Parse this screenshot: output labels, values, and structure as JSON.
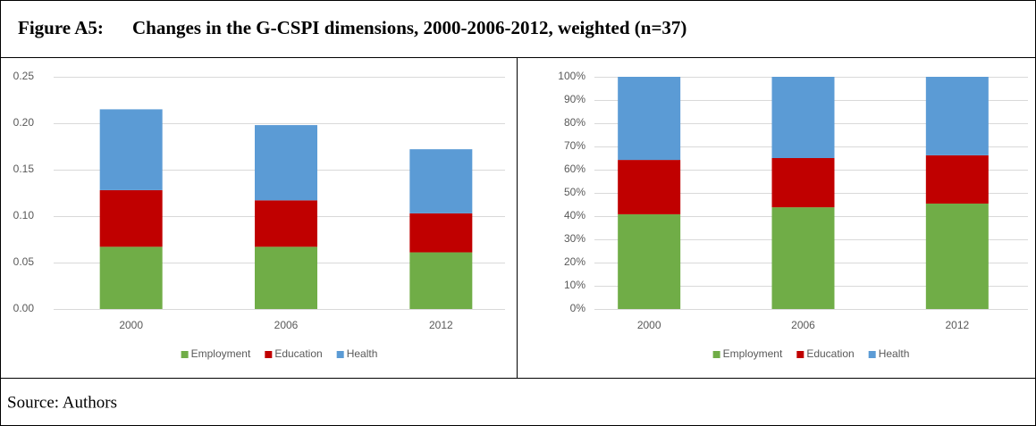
{
  "figure": {
    "label": "Figure A5:",
    "title": "Changes in the G-CSPI dimensions, 2000-2006-2012, weighted (n=37)"
  },
  "source": "Source: Authors",
  "chart_data": [
    {
      "type": "stacked_bar",
      "categories": [
        "2000",
        "2006",
        "2012"
      ],
      "series": [
        {
          "name": "Employment",
          "color": "#70ad47",
          "values": [
            0.067,
            0.067,
            0.061
          ]
        },
        {
          "name": "Education",
          "color": "#c00000",
          "values": [
            0.061,
            0.05,
            0.042
          ]
        },
        {
          "name": "Health",
          "color": "#5b9bd5",
          "values": [
            0.087,
            0.081,
            0.069
          ]
        }
      ],
      "ylim": [
        0,
        0.25
      ],
      "yticks": [
        {
          "value": 0,
          "label": "0.00"
        },
        {
          "value": 0.05,
          "label": "0.05"
        },
        {
          "value": 0.1,
          "label": "0.10"
        },
        {
          "value": 0.15,
          "label": "0.15"
        },
        {
          "value": 0.2,
          "label": "0.20"
        },
        {
          "value": 0.25,
          "label": "0.25"
        }
      ],
      "grid": true,
      "legend": "bottom"
    },
    {
      "type": "stacked_bar",
      "categories": [
        "2000",
        "2006",
        "2012"
      ],
      "series": [
        {
          "name": "Employment",
          "color": "#70ad47",
          "values": [
            40.8,
            43.8,
            45.4
          ]
        },
        {
          "name": "Education",
          "color": "#c00000",
          "values": [
            23.4,
            21.2,
            20.8
          ]
        },
        {
          "name": "Health",
          "color": "#5b9bd5",
          "values": [
            35.8,
            35,
            33.8
          ]
        }
      ],
      "ylim": [
        0,
        100
      ],
      "yticks": [
        {
          "value": 0,
          "label": "0%"
        },
        {
          "value": 10,
          "label": "10%"
        },
        {
          "value": 20,
          "label": "20%"
        },
        {
          "value": 30,
          "label": "30%"
        },
        {
          "value": 40,
          "label": "40%"
        },
        {
          "value": 50,
          "label": "50%"
        },
        {
          "value": 60,
          "label": "60%"
        },
        {
          "value": 70,
          "label": "70%"
        },
        {
          "value": 80,
          "label": "80%"
        },
        {
          "value": 90,
          "label": "90%"
        },
        {
          "value": 100,
          "label": "100%"
        }
      ],
      "grid": true,
      "legend": "bottom"
    }
  ]
}
